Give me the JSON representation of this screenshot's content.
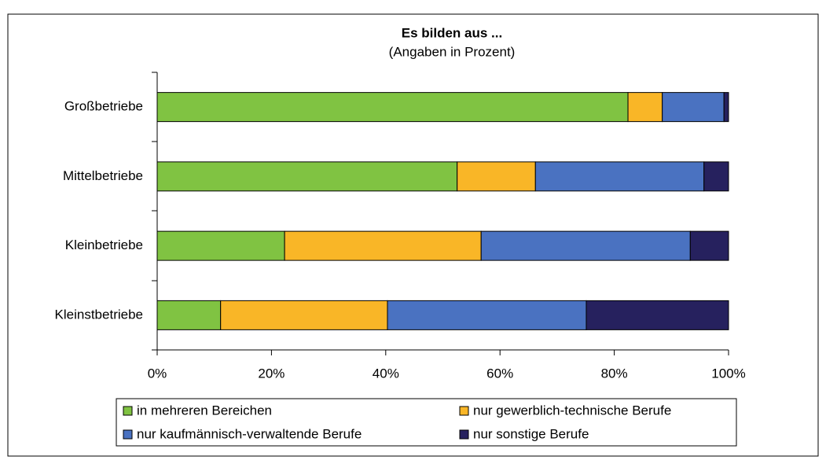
{
  "chart_data": {
    "type": "stacked_bar_horizontal",
    "title": "Es bilden aus ...",
    "subtitle": "(Angaben in Prozent)",
    "categories": [
      "Großbetriebe",
      "Mittelbetriebe",
      "Kleinbetriebe",
      "Kleinstbetriebe"
    ],
    "series": [
      {
        "name": "in mehreren Bereichen",
        "color": "#80c342",
        "values": [
          82.4,
          52.5,
          22.3,
          11.1
        ]
      },
      {
        "name": "nur gewerblich-technische Berufe",
        "color": "#f9b627",
        "values": [
          6.0,
          13.7,
          34.4,
          29.2
        ]
      },
      {
        "name": "nur kaufmännisch-verwaltende Berufe",
        "color": "#4a72c1",
        "values": [
          10.8,
          29.5,
          36.6,
          34.8
        ]
      },
      {
        "name": "nur sonstige Berufe",
        "color": "#26215e",
        "values": [
          0.8,
          4.3,
          6.7,
          24.9
        ]
      }
    ],
    "xlim": [
      0,
      100
    ],
    "xticks": [
      {
        "value": 0,
        "label": "0%"
      },
      {
        "value": 20,
        "label": "20%"
      },
      {
        "value": 40,
        "label": "40%"
      },
      {
        "value": 60,
        "label": "60%"
      },
      {
        "value": 80,
        "label": "80%"
      },
      {
        "value": 100,
        "label": "100%"
      }
    ]
  }
}
